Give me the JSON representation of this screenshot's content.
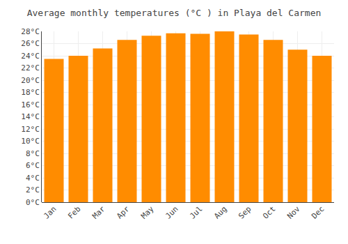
{
  "chart_data": {
    "type": "bar",
    "title": "Average monthly temperatures (°C ) in Playa del Carmen",
    "categories": [
      "Jan",
      "Feb",
      "Mar",
      "Apr",
      "May",
      "Jun",
      "Jul",
      "Aug",
      "Sep",
      "Oct",
      "Nov",
      "Dec"
    ],
    "values": [
      23.5,
      24.0,
      25.2,
      26.6,
      27.3,
      27.7,
      27.6,
      28.0,
      27.5,
      26.6,
      25.0,
      24.0
    ],
    "color": "#FF8C00",
    "ylim": [
      0,
      28
    ],
    "yticks": [
      {
        "value": 0,
        "label": "0°C"
      },
      {
        "value": 2,
        "label": "2°C"
      },
      {
        "value": 4,
        "label": "4°C"
      },
      {
        "value": 6,
        "label": "6°C"
      },
      {
        "value": 8,
        "label": "8°C"
      },
      {
        "value": 10,
        "label": "10°C"
      },
      {
        "value": 12,
        "label": "12°C"
      },
      {
        "value": 14,
        "label": "14°C"
      },
      {
        "value": 16,
        "label": "16°C"
      },
      {
        "value": 18,
        "label": "18°C"
      },
      {
        "value": 20,
        "label": "20°C"
      },
      {
        "value": 22,
        "label": "22°C"
      },
      {
        "value": 24,
        "label": "24°C"
      },
      {
        "value": 26,
        "label": "26°C"
      },
      {
        "value": 28,
        "label": "28°C"
      }
    ],
    "grid": true
  }
}
